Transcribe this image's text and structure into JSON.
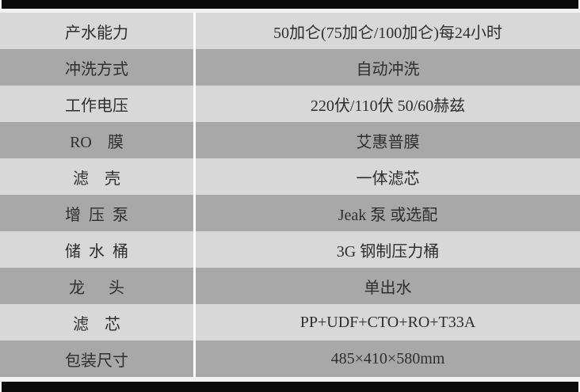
{
  "colors": {
    "row_light": "#d8d8d8",
    "row_dark": "#a8a8a8",
    "bar_black": "#0b0b0b",
    "gap": "#f2f2f2",
    "text": "#2e2e2e"
  },
  "table": {
    "rows": [
      {
        "label": "产水能力",
        "value": "50加仑(75加仑/100加仑)每24小时"
      },
      {
        "label": "冲洗方式",
        "value": "自动冲洗"
      },
      {
        "label": "工作电压",
        "value": "220伏/110伏 50/60赫兹"
      },
      {
        "label": "RO    膜",
        "value": "艾惠普膜"
      },
      {
        "label": "滤    壳",
        "value": "一体滤芯"
      },
      {
        "label": "增  压  泵",
        "value": "Jeak 泵 或选配"
      },
      {
        "label": "储  水  桶",
        "value": "3G 钢制压力桶"
      },
      {
        "label": "龙      头",
        "value": "单出水"
      },
      {
        "label": "滤    芯",
        "value": "PP+UDF+CTO+RO+T33A"
      },
      {
        "label": "包装尺寸",
        "value": "485×410×580mm"
      }
    ]
  }
}
